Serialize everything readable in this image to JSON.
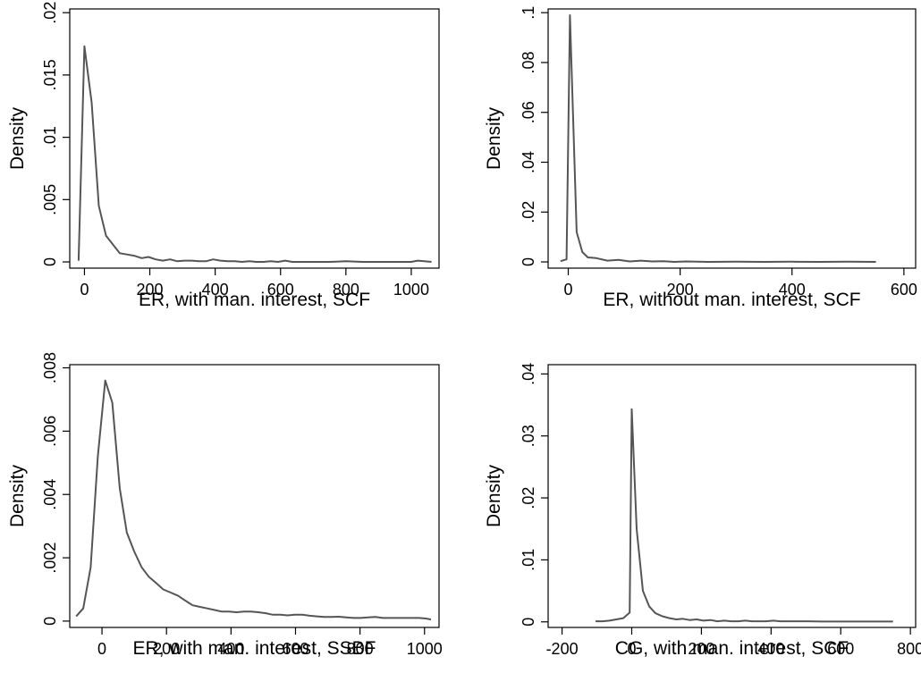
{
  "colors": {
    "line": "#555555",
    "axis": "#000000",
    "background": "#ffffff"
  },
  "chart_data": [
    {
      "type": "line",
      "xlabel": "ER, with man. interest, SCF",
      "ylabel": "Density",
      "xlim": [
        -45,
        1085
      ],
      "ylim": [
        -0.0005,
        0.0203
      ],
      "xticks": [
        0,
        200,
        400,
        600,
        800,
        1000
      ],
      "xtick_labels": [
        "0",
        "200",
        "400",
        "600",
        "800",
        "1000"
      ],
      "yticks": [
        0,
        0.005,
        0.01,
        0.015,
        0.02
      ],
      "ytick_labels": [
        "0",
        ".005",
        ".01",
        ".015",
        ".02"
      ],
      "grid": false,
      "x": [
        -18,
        0,
        22,
        44,
        66,
        108,
        130,
        152,
        175,
        196,
        218,
        240,
        262,
        284,
        306,
        328,
        350,
        372,
        394,
        416,
        438,
        460,
        482,
        504,
        526,
        548,
        570,
        592,
        614,
        636,
        660,
        700,
        750,
        800,
        850,
        900,
        950,
        1000,
        1020,
        1062
      ],
      "y": [
        0.0001,
        0.0173,
        0.0128,
        0.0045,
        0.0021,
        0.0007,
        0.0006,
        0.0005,
        0.0003,
        0.0004,
        0.0002,
        0.0001,
        0.0002,
        5e-05,
        0.0001,
        0.0001,
        5e-05,
        5e-05,
        0.0002,
        0.0001,
        5e-05,
        5e-05,
        0.0,
        5e-05,
        0.0,
        0.0,
        5e-05,
        0.0,
        0.0001,
        0.0,
        0.0,
        0.0,
        0.0,
        5e-05,
        0.0,
        0.0,
        0.0,
        0.0,
        0.0001,
        0.0
      ]
    },
    {
      "type": "line",
      "xlabel": "ER, without man. interest, SCF",
      "ylabel": "Density",
      "xlim": [
        -36,
        621
      ],
      "ylim": [
        -0.0025,
        0.1015
      ],
      "xticks": [
        0,
        200,
        400,
        600
      ],
      "xtick_labels": [
        "0",
        "200",
        "400",
        "600"
      ],
      "yticks": [
        0,
        0.02,
        0.04,
        0.06,
        0.08,
        0.1
      ],
      "ytick_labels": [
        "0",
        ".02",
        ".04",
        ".06",
        ".08",
        ".1"
      ],
      "grid": false,
      "x": [
        -14,
        -3,
        3,
        15,
        25,
        35,
        50,
        70,
        90,
        110,
        130,
        150,
        170,
        190,
        210,
        250,
        300,
        350,
        400,
        450,
        500,
        550
      ],
      "y": [
        0.0003,
        0.001,
        0.099,
        0.012,
        0.004,
        0.0018,
        0.0015,
        0.0005,
        0.0008,
        0.0002,
        0.0005,
        0.0002,
        0.0003,
        0.0,
        0.0002,
        0.0,
        0.0001,
        0.0,
        0.0001,
        0.0,
        0.0001,
        0.0
      ]
    },
    {
      "type": "line",
      "xlabel": "ER, with man. interest, SSBF",
      "ylabel": "Density",
      "xlim": [
        -100,
        1045
      ],
      "ylim": [
        -0.0002,
        0.0081
      ],
      "xticks": [
        0,
        200,
        400,
        600,
        800,
        1000
      ],
      "xtick_labels": [
        "0",
        "200",
        "400",
        "600",
        "800",
        "1000"
      ],
      "yticks": [
        0,
        0.002,
        0.004,
        0.006,
        0.008
      ],
      "ytick_labels": [
        "0",
        ".002",
        ".004",
        ".006",
        ".008"
      ],
      "grid": false,
      "x": [
        -80,
        -58,
        -35,
        -13,
        10,
        32,
        55,
        77,
        100,
        123,
        145,
        168,
        190,
        213,
        236,
        258,
        281,
        304,
        326,
        349,
        372,
        394,
        417,
        440,
        462,
        485,
        508,
        530,
        553,
        576,
        598,
        621,
        644,
        666,
        689,
        712,
        734,
        757,
        780,
        802,
        825,
        848,
        870,
        893,
        916,
        938,
        961,
        984,
        1006,
        1020
      ],
      "y": [
        0.00015,
        0.0004,
        0.0017,
        0.0052,
        0.0076,
        0.0069,
        0.0042,
        0.0028,
        0.0022,
        0.0017,
        0.0014,
        0.0012,
        0.001,
        0.0009,
        0.0008,
        0.00065,
        0.0005,
        0.00045,
        0.0004,
        0.00035,
        0.0003,
        0.0003,
        0.00028,
        0.0003,
        0.0003,
        0.00028,
        0.00025,
        0.0002,
        0.0002,
        0.00018,
        0.0002,
        0.0002,
        0.00017,
        0.00015,
        0.00013,
        0.00013,
        0.00014,
        0.00012,
        0.0001,
        0.0001,
        0.00012,
        0.00013,
        0.0001,
        0.0001,
        0.0001,
        0.0001,
        0.0001,
        0.0001,
        8e-05,
        5e-05
      ]
    },
    {
      "type": "line",
      "xlabel": "CG, with man. interest, SCF",
      "ylabel": "Density",
      "xlim": [
        -240,
        815
      ],
      "ylim": [
        -0.0009,
        0.0415
      ],
      "xticks": [
        -200,
        0,
        200,
        400,
        600,
        800
      ],
      "xtick_labels": [
        "-200",
        "0",
        "200",
        "400",
        "600",
        "800"
      ],
      "yticks": [
        0,
        0.01,
        0.02,
        0.03,
        0.04
      ],
      "ytick_labels": [
        "0",
        ".01",
        ".02",
        ".03",
        ".04"
      ],
      "grid": false,
      "x": [
        -104,
        -84,
        -64,
        -44,
        -24,
        -6,
        0,
        14,
        32,
        50,
        68,
        88,
        108,
        128,
        146,
        166,
        186,
        206,
        226,
        246,
        266,
        286,
        306,
        326,
        346,
        366,
        386,
        406,
        426,
        446,
        466,
        486,
        506,
        546,
        586,
        626,
        666,
        706,
        750
      ],
      "y": [
        0.0001,
        0.0001,
        0.0002,
        0.0004,
        0.0006,
        0.0015,
        0.0343,
        0.015,
        0.005,
        0.0025,
        0.0014,
        0.0009,
        0.0006,
        0.0004,
        0.0005,
        0.0003,
        0.0004,
        0.0002,
        0.0003,
        0.0001,
        0.0002,
        0.0001,
        0.0001,
        0.0002,
        0.0001,
        0.0001,
        0.0001,
        0.0002,
        0.0001,
        0.0001,
        0.0001,
        0.0001,
        0.0001,
        5e-05,
        5e-05,
        5e-05,
        5e-05,
        5e-05,
        5e-05
      ]
    }
  ]
}
